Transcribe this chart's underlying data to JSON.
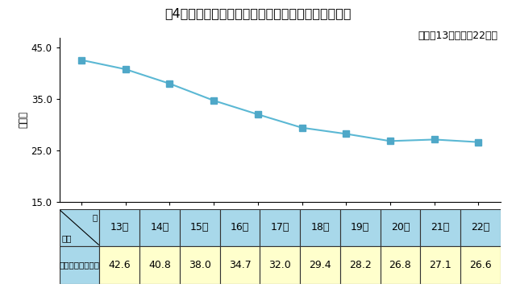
{
  "title": "第4図　刑法犯総検挙人員に占める少年の割合の推移",
  "subtitle": "（平成13年～平成22年）",
  "ylabel": "（％）",
  "years": [
    "13年",
    "14年",
    "15年",
    "16年",
    "17年",
    "18年",
    "19年",
    "20年",
    "21年",
    "22年"
  ],
  "values": [
    42.6,
    40.8,
    38.0,
    34.7,
    32.0,
    29.4,
    28.2,
    26.8,
    27.1,
    26.6
  ],
  "ylim": [
    15.0,
    47.0
  ],
  "yticks": [
    15.0,
    25.0,
    35.0,
    45.0
  ],
  "line_color": "#5BB8D4",
  "marker_color": "#4FA8C8",
  "bg_color": "#FFFFFF",
  "table_header_bg": "#A8D8EA",
  "table_data_bg": "#FFFFCC",
  "table_row_label": "少年の割合（％）",
  "table_values": [
    "42.6",
    "40.8",
    "38.0",
    "34.7",
    "32.0",
    "29.4",
    "28.2",
    "26.8",
    "27.1",
    "26.6"
  ],
  "title_fontsize": 11.5,
  "subtitle_fontsize": 9,
  "axis_fontsize": 8.5,
  "table_fontsize": 9
}
